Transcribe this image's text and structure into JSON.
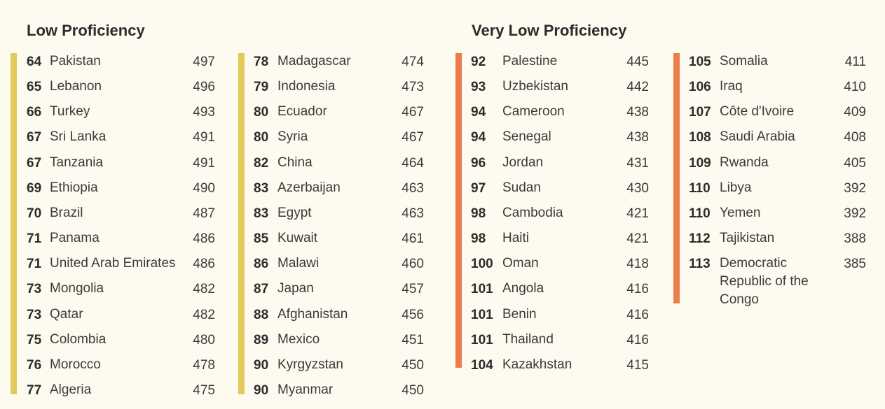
{
  "colors": {
    "low": "#e3c95a",
    "very_low": "#ea7d4b",
    "background": "#fdfbf0"
  },
  "sections": [
    {
      "title": "Low Proficiency",
      "columns": [
        {
          "rows": [
            {
              "rank": "64",
              "country": "Pakistan",
              "score": "497"
            },
            {
              "rank": "65",
              "country": "Lebanon",
              "score": "496"
            },
            {
              "rank": "66",
              "country": "Turkey",
              "score": "493"
            },
            {
              "rank": "67",
              "country": "Sri Lanka",
              "score": "491"
            },
            {
              "rank": "67",
              "country": "Tanzania",
              "score": "491"
            },
            {
              "rank": "69",
              "country": "Ethiopia",
              "score": "490"
            },
            {
              "rank": "70",
              "country": "Brazil",
              "score": "487"
            },
            {
              "rank": "71",
              "country": "Panama",
              "score": "486"
            },
            {
              "rank": "71",
              "country": "United Arab Emirates",
              "score": "486"
            },
            {
              "rank": "73",
              "country": "Mongolia",
              "score": "482"
            },
            {
              "rank": "73",
              "country": "Qatar",
              "score": "482"
            },
            {
              "rank": "75",
              "country": "Colombia",
              "score": "480"
            },
            {
              "rank": "76",
              "country": "Morocco",
              "score": "478"
            },
            {
              "rank": "77",
              "country": "Algeria",
              "score": "475"
            }
          ]
        },
        {
          "rows": [
            {
              "rank": "78",
              "country": "Madagascar",
              "score": "474"
            },
            {
              "rank": "79",
              "country": "Indonesia",
              "score": "473"
            },
            {
              "rank": "80",
              "country": "Ecuador",
              "score": "467"
            },
            {
              "rank": "80",
              "country": "Syria",
              "score": "467"
            },
            {
              "rank": "82",
              "country": "China",
              "score": "464"
            },
            {
              "rank": "83",
              "country": "Azerbaijan",
              "score": "463"
            },
            {
              "rank": "83",
              "country": "Egypt",
              "score": "463"
            },
            {
              "rank": "85",
              "country": "Kuwait",
              "score": "461"
            },
            {
              "rank": "86",
              "country": "Malawi",
              "score": "460"
            },
            {
              "rank": "87",
              "country": "Japan",
              "score": "457"
            },
            {
              "rank": "88",
              "country": "Afghanistan",
              "score": "456"
            },
            {
              "rank": "89",
              "country": "Mexico",
              "score": "451"
            },
            {
              "rank": "90",
              "country": "Kyrgyzstan",
              "score": "450"
            },
            {
              "rank": "90",
              "country": "Myanmar",
              "score": "450"
            }
          ]
        }
      ]
    },
    {
      "title": "Very Low Proficiency",
      "columns": [
        {
          "rows": [
            {
              "rank": "92",
              "country": "Palestine",
              "score": "445"
            },
            {
              "rank": "93",
              "country": "Uzbekistan",
              "score": "442"
            },
            {
              "rank": "94",
              "country": "Cameroon",
              "score": "438"
            },
            {
              "rank": "94",
              "country": "Senegal",
              "score": "438"
            },
            {
              "rank": "96",
              "country": "Jordan",
              "score": "431"
            },
            {
              "rank": "97",
              "country": "Sudan",
              "score": "430"
            },
            {
              "rank": "98",
              "country": "Cambodia",
              "score": "421"
            },
            {
              "rank": "98",
              "country": "Haiti",
              "score": "421"
            },
            {
              "rank": "100",
              "country": "Oman",
              "score": "418"
            },
            {
              "rank": "101",
              "country": "Angola",
              "score": "416"
            },
            {
              "rank": "101",
              "country": "Benin",
              "score": "416"
            },
            {
              "rank": "101",
              "country": "Thailand",
              "score": "416"
            },
            {
              "rank": "104",
              "country": "Kazakhstan",
              "score": "415"
            }
          ]
        },
        {
          "rows": [
            {
              "rank": "105",
              "country": "Somalia",
              "score": "411"
            },
            {
              "rank": "106",
              "country": "Iraq",
              "score": "410"
            },
            {
              "rank": "107",
              "country": "Côte d'Ivoire",
              "score": "409"
            },
            {
              "rank": "108",
              "country": "Saudi Arabia",
              "score": "408"
            },
            {
              "rank": "109",
              "country": "Rwanda",
              "score": "405"
            },
            {
              "rank": "110",
              "country": "Libya",
              "score": "392"
            },
            {
              "rank": "110",
              "country": "Yemen",
              "score": "392"
            },
            {
              "rank": "112",
              "country": "Tajikistan",
              "score": "388"
            },
            {
              "rank": "113",
              "country": "Democratic Republic of the Congo",
              "score": "385"
            }
          ]
        }
      ]
    }
  ]
}
